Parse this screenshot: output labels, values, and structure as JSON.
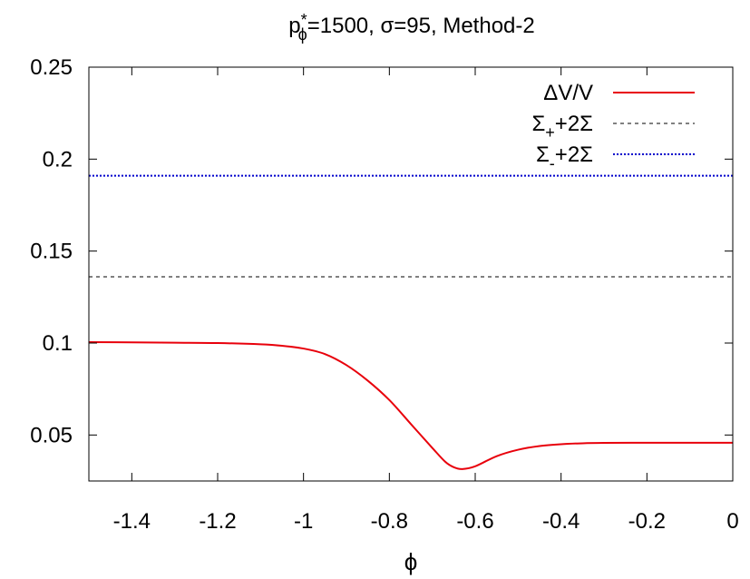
{
  "chart_data": {
    "type": "line",
    "title": {
      "p": "p",
      "star": "*",
      "sub": "ϕ",
      "rest": "=1500, σ=95, Method-2"
    },
    "xlabel": "ϕ",
    "ylabel": "",
    "xlim": [
      -1.5,
      0
    ],
    "ylim": [
      0.025,
      0.25
    ],
    "x_ticks": [
      -1.4,
      -1.2,
      -1.0,
      -0.8,
      -0.6,
      -0.4,
      -0.2,
      0
    ],
    "x_tick_labels": [
      "-1.4",
      "-1.2",
      "-1",
      "-0.8",
      "-0.6",
      "-0.4",
      "-0.2",
      "0"
    ],
    "y_ticks": [
      0.05,
      0.1,
      0.15,
      0.2,
      0.25
    ],
    "y_tick_labels": [
      "0.05",
      "0.1",
      "0.15",
      "0.2",
      "0.25"
    ],
    "grid": false,
    "legend_position": "top-right",
    "legend": {
      "dv": "ΔV/V",
      "plus": {
        "base": "Σ",
        "sub": "+",
        "rest": "+2Σ"
      },
      "minus": {
        "base": "Σ",
        "sub": "-",
        "rest": "+2Σ"
      }
    },
    "series": [
      {
        "key": "dv",
        "color": "#e8000b",
        "style": "solid",
        "x": [
          -1.5,
          -1.4,
          -1.3,
          -1.2,
          -1.1,
          -1.05,
          -1.0,
          -0.95,
          -0.9,
          -0.85,
          -0.8,
          -0.75,
          -0.7,
          -0.67,
          -0.65,
          -0.63,
          -0.6,
          -0.55,
          -0.5,
          -0.45,
          -0.4,
          -0.35,
          -0.3,
          -0.2,
          -0.1,
          0
        ],
        "y": [
          0.1005,
          0.1004,
          0.1002,
          0.1,
          0.0993,
          0.0985,
          0.097,
          0.094,
          0.088,
          0.0795,
          0.069,
          0.056,
          0.043,
          0.0355,
          0.0325,
          0.0315,
          0.033,
          0.0385,
          0.042,
          0.044,
          0.045,
          0.0455,
          0.0457,
          0.0458,
          0.0458,
          0.0458
        ]
      },
      {
        "key": "plus",
        "color": "#000000",
        "style": "dashed",
        "x": [
          -1.5,
          0
        ],
        "y": [
          0.136,
          0.136
        ]
      },
      {
        "key": "minus",
        "color": "#0000cc",
        "style": "dotted",
        "x": [
          -1.5,
          0
        ],
        "y": [
          0.191,
          0.191
        ]
      }
    ]
  }
}
